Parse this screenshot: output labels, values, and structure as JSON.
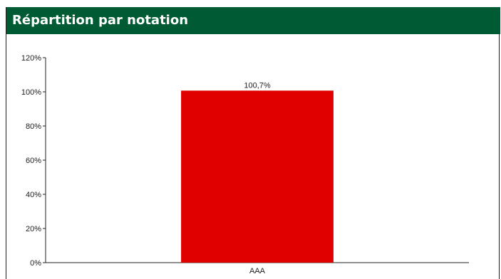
{
  "header": {
    "title": "Répartition par notation"
  },
  "colors": {
    "header_bg": "#005a33",
    "bar": "#e00000"
  },
  "chart_data": {
    "type": "bar",
    "title": "Répartition par notation",
    "categories": [
      "AAA"
    ],
    "values": [
      100.7
    ],
    "data_labels": [
      "100,7%"
    ],
    "ylim": [
      0,
      120
    ],
    "yticks": [
      0,
      20,
      40,
      60,
      80,
      100,
      120
    ],
    "ytick_labels": [
      "0%",
      "20%",
      "40%",
      "60%",
      "80%",
      "100%",
      "120%"
    ],
    "xlabel": "",
    "ylabel": "",
    "grid": false,
    "legend": "none"
  }
}
